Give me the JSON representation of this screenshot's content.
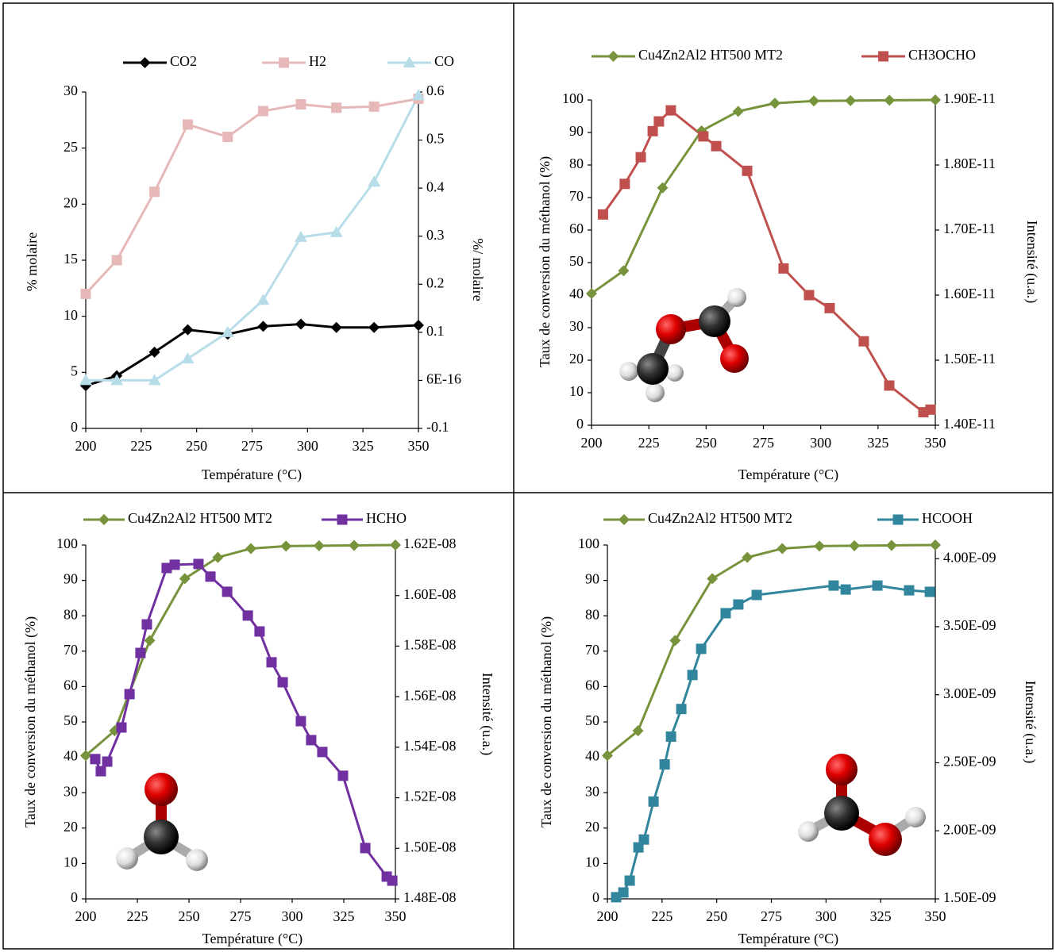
{
  "chart_data": [
    {
      "type": "line",
      "xlabel": "Température (°C)",
      "ylabel": "%  molaire",
      "y2label": "%/ molaire",
      "xlim": [
        200,
        350
      ],
      "xticks": [
        200,
        225,
        250,
        275,
        300,
        325,
        350
      ],
      "ylim": [
        0,
        30
      ],
      "yticks": [
        0,
        5,
        10,
        15,
        20,
        25,
        30
      ],
      "y2lim": [
        -0.1,
        0.6
      ],
      "y2ticks": [
        -0.1,
        {
          "value": 6e-16,
          "label": "6E-16"
        },
        0.1,
        0.2,
        0.3,
        0.4,
        0.5,
        0.6
      ],
      "series": [
        {
          "name": "CO2",
          "color": "#000000",
          "marker": "diamond",
          "x": [
            200,
            214,
            231,
            246,
            264,
            280,
            297,
            313,
            330,
            350
          ],
          "values": [
            3.8,
            4.7,
            6.8,
            8.8,
            8.4,
            9.1,
            9.3,
            9.0,
            9.0,
            9.2
          ]
        },
        {
          "name": "H2",
          "color": "#e6b8b7",
          "marker": "square",
          "x": [
            200,
            214,
            231,
            246,
            264,
            280,
            297,
            313,
            330,
            350
          ],
          "values": [
            12,
            15,
            21.1,
            27.1,
            26.0,
            28.3,
            28.9,
            28.6,
            28.7,
            29.4
          ]
        },
        {
          "name": "CO",
          "color": "#b7dde8",
          "marker": "triangle",
          "axis": "y2",
          "x": [
            200,
            214,
            231,
            246,
            264,
            280,
            297,
            313,
            330,
            350
          ],
          "values": [
            0.0,
            0.0,
            0.0,
            0.045,
            0.1,
            0.167,
            0.298,
            0.308,
            0.413,
            0.593
          ]
        }
      ]
    },
    {
      "type": "line",
      "xlabel": "Température (°C)",
      "ylabel": "Taux de conversion du méthanol  (%)",
      "y2label": "Intensité (u.a.)",
      "xlim": [
        200,
        350
      ],
      "xticks": [
        200,
        225,
        250,
        275,
        300,
        325,
        350
      ],
      "ylim": [
        0,
        100
      ],
      "yticks": [
        0,
        10,
        20,
        30,
        40,
        50,
        60,
        70,
        80,
        90,
        100
      ],
      "y2lim": [
        1.4e-11,
        1.9e-11
      ],
      "y2ticks": [
        {
          "value": 1.4e-11,
          "label": "1.40E-11"
        },
        {
          "value": 1.5e-11,
          "label": "1.50E-11"
        },
        {
          "value": 1.6e-11,
          "label": "1.60E-11"
        },
        {
          "value": 1.7e-11,
          "label": "1.70E-11"
        },
        {
          "value": 1.8e-11,
          "label": "1.80E-11"
        },
        {
          "value": 1.9e-11,
          "label": "1.90E-11"
        }
      ],
      "series": [
        {
          "name": "Cu4Zn2Al2 HT500 MT2",
          "color": "#77933c",
          "marker": "diamond",
          "x": [
            200,
            214,
            231,
            248,
            264,
            280,
            297,
            313,
            330,
            350
          ],
          "values": [
            40.5,
            47.5,
            73,
            90.5,
            96.5,
            99,
            99.7,
            99.8,
            99.9,
            100
          ]
        },
        {
          "name": "CH3OCHO",
          "color": "#c0504d",
          "marker": "square",
          "axis": "y2",
          "x": [
            205,
            214.5,
            221.5,
            226.7,
            229.4,
            234.6,
            248.8,
            254.4,
            267.9,
            283.8,
            294.9,
            303.9,
            318.8,
            329.9,
            344.8,
            347.9
          ],
          "values": [
            1.724e-11,
            1.771e-11,
            1.812e-11,
            1.852e-11,
            1.867e-11,
            1.884e-11,
            1.844e-11,
            1.829e-11,
            1.791e-11,
            1.641e-11,
            1.6e-11,
            1.58e-11,
            1.529e-11,
            1.461e-11,
            1.42e-11,
            1.424e-11
          ]
        }
      ]
    },
    {
      "type": "line",
      "xlabel": "Température (°C)",
      "ylabel": "Taux de conversion du méthanol  (%)",
      "y2label": "Intensité (u.a.)",
      "xlim": [
        200,
        350
      ],
      "xticks": [
        200,
        225,
        250,
        275,
        300,
        325,
        350
      ],
      "ylim": [
        0,
        100
      ],
      "yticks": [
        0,
        10,
        20,
        30,
        40,
        50,
        60,
        70,
        80,
        90,
        100
      ],
      "y2lim": [
        1.48e-08,
        1.62e-08
      ],
      "y2ticks": [
        {
          "value": 1.48e-08,
          "label": "1.48E-08"
        },
        {
          "value": 1.5e-08,
          "label": "1.50E-08"
        },
        {
          "value": 1.52e-08,
          "label": "1.52E-08"
        },
        {
          "value": 1.54e-08,
          "label": "1.54E-08"
        },
        {
          "value": 1.56e-08,
          "label": "1.56E-08"
        },
        {
          "value": 1.58e-08,
          "label": "1.58E-08"
        },
        {
          "value": 1.6e-08,
          "label": "1.60E-08"
        },
        {
          "value": 1.62e-08,
          "label": "1.62E-08"
        }
      ],
      "series": [
        {
          "name": "Cu4Zn2Al2 HT500 MT2",
          "color": "#77933c",
          "marker": "diamond",
          "x": [
            200,
            214,
            231,
            248,
            264,
            280,
            297,
            313,
            330,
            350
          ],
          "values": [
            40.5,
            47.5,
            73,
            90.5,
            96.5,
            99,
            99.7,
            99.8,
            99.9,
            100
          ]
        },
        {
          "name": "HCHO",
          "color": "#7030a0",
          "marker": "square",
          "axis": "y2",
          "x": [
            204.6,
            207.3,
            210.4,
            217.3,
            221.2,
            226.5,
            229.6,
            239.2,
            243.1,
            254.6,
            260.4,
            268.5,
            278.5,
            284.2,
            290.0,
            295.4,
            304.2,
            309.2,
            314.6,
            324.6,
            335.4,
            345.8,
            348.5
          ],
          "values": [
            1.5353e-08,
            1.5305e-08,
            1.5343e-08,
            1.5478e-08,
            1.561e-08,
            1.5773e-08,
            1.5886e-08,
            1.6109e-08,
            1.6122e-08,
            1.6125e-08,
            1.6075e-08,
            1.6015e-08,
            1.5921e-08,
            1.5858e-08,
            1.5736e-08,
            1.5657e-08,
            1.5503e-08,
            1.5428e-08,
            1.5381e-08,
            1.5287e-08,
            1.5001e-08,
            1.4888e-08,
            1.4872e-08
          ]
        }
      ]
    },
    {
      "type": "line",
      "xlabel": "Température (°C)",
      "ylabel": "Taux de conversion du méthanol  (%)",
      "y2label": "Intensité (u.a.)",
      "xlim": [
        200,
        350
      ],
      "xticks": [
        200,
        225,
        250,
        275,
        300,
        325,
        350
      ],
      "ylim": [
        0,
        100
      ],
      "yticks": [
        0,
        10,
        20,
        30,
        40,
        50,
        60,
        70,
        80,
        90,
        100
      ],
      "y2lim": [
        1.5e-09,
        4.1e-09
      ],
      "y2ticks": [
        {
          "value": 1.5e-09,
          "label": "1.50E-09"
        },
        {
          "value": 2e-09,
          "label": "2.00E-09"
        },
        {
          "value": 2.5e-09,
          "label": "2.50E-09"
        },
        {
          "value": 3e-09,
          "label": "3.00E-09"
        },
        {
          "value": 3.5e-09,
          "label": "3.50E-09"
        },
        {
          "value": 4e-09,
          "label": "4.00E-09"
        }
      ],
      "series": [
        {
          "name": "Cu4Zn2Al2 HT500 MT2",
          "color": "#77933c",
          "marker": "diamond",
          "x": [
            200,
            214,
            231,
            248,
            264,
            280,
            297,
            313,
            330,
            350
          ],
          "values": [
            40.5,
            47.5,
            73,
            90.5,
            96.5,
            99,
            99.7,
            99.8,
            99.9,
            100
          ]
        },
        {
          "name": "HCOOH",
          "color": "#31859c",
          "marker": "square",
          "axis": "y2",
          "x": [
            204.0,
            207.3,
            210.2,
            214.2,
            216.7,
            221.1,
            226.2,
            229.1,
            233.8,
            238.9,
            242.9,
            254.1,
            259.9,
            268.3,
            303.5,
            309.0,
            323.5,
            338.0,
            347.5
          ],
          "values": [
            1.512e-09,
            1.547e-09,
            1.634e-09,
            1.878e-09,
            1.936e-09,
            2.215e-09,
            2.488e-09,
            2.692e-09,
            2.895e-09,
            3.145e-09,
            3.337e-09,
            3.599e-09,
            3.663e-09,
            3.733e-09,
            3.802e-09,
            3.773e-09,
            3.802e-09,
            3.767e-09,
            3.756e-09
          ]
        }
      ]
    }
  ]
}
